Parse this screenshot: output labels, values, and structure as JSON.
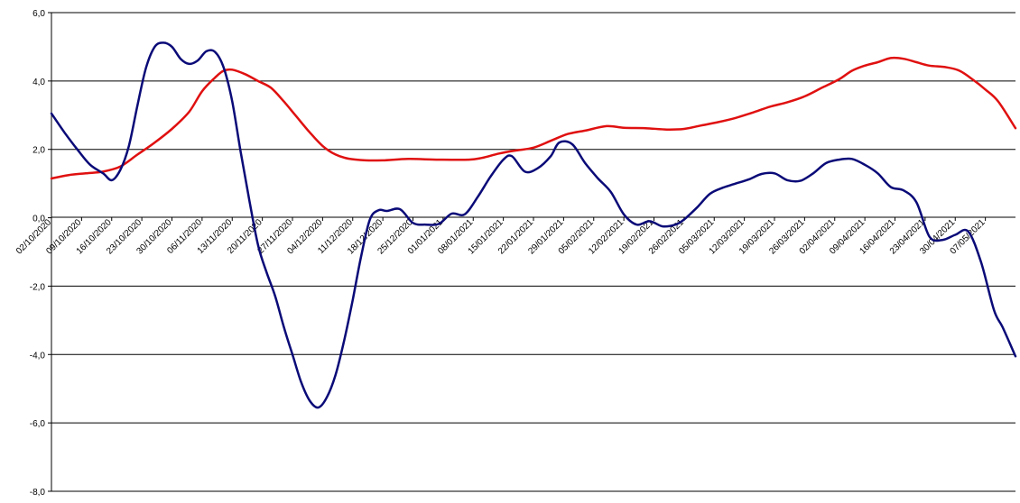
{
  "chart_data": {
    "type": "line",
    "title": "",
    "xlabel": "",
    "ylabel": "",
    "ylim": [
      -8,
      6
    ],
    "ytick_step": 2,
    "ytick_labels": [
      "-8,0",
      "-6,0",
      "-4,0",
      "-2,0",
      "0,0",
      "2,0",
      "4,0",
      "6,0"
    ],
    "grid": "horizontal",
    "legend": "none",
    "xlim": [
      "2020-10-02",
      "2021-05-14"
    ],
    "x_tick_labels": [
      "02/10/2020",
      "09/10/2020",
      "16/10/2020",
      "23/10/2020",
      "30/10/2020",
      "06/11/2020",
      "13/11/2020",
      "20/11/2020",
      "27/11/2020",
      "04/12/2020",
      "11/12/2020",
      "18/12/2020",
      "25/12/2020",
      "01/01/2021",
      "08/01/2021",
      "15/01/2021",
      "22/01/2021",
      "29/01/2021",
      "05/02/2021",
      "12/02/2021",
      "19/02/2021",
      "26/02/2021",
      "05/03/2021",
      "12/03/2021",
      "19/03/2021",
      "26/03/2021",
      "02/04/2021",
      "09/04/2021",
      "16/04/2021",
      "23/04/2021",
      "30/04/2021",
      "07/05/2021"
    ],
    "series": [
      {
        "color": "#e01010",
        "points": [
          [
            "2020-10-02",
            1.15
          ],
          [
            "2020-10-06",
            1.25
          ],
          [
            "2020-10-10",
            1.3
          ],
          [
            "2020-10-14",
            1.35
          ],
          [
            "2020-10-18",
            1.5
          ],
          [
            "2020-10-22",
            1.85
          ],
          [
            "2020-10-26",
            2.2
          ],
          [
            "2020-10-30",
            2.6
          ],
          [
            "2020-11-03",
            3.1
          ],
          [
            "2020-11-06",
            3.7
          ],
          [
            "2020-11-09",
            4.1
          ],
          [
            "2020-11-11",
            4.3
          ],
          [
            "2020-11-13",
            4.33
          ],
          [
            "2020-11-16",
            4.2
          ],
          [
            "2020-11-19",
            4.0
          ],
          [
            "2020-11-22",
            3.8
          ],
          [
            "2020-11-25",
            3.4
          ],
          [
            "2020-11-28",
            2.95
          ],
          [
            "2020-12-01",
            2.5
          ],
          [
            "2020-12-04",
            2.1
          ],
          [
            "2020-12-07",
            1.85
          ],
          [
            "2020-12-10",
            1.73
          ],
          [
            "2020-12-14",
            1.68
          ],
          [
            "2020-12-18",
            1.68
          ],
          [
            "2020-12-24",
            1.72
          ],
          [
            "2020-12-31",
            1.7
          ],
          [
            "2021-01-07",
            1.7
          ],
          [
            "2021-01-10",
            1.75
          ],
          [
            "2021-01-14",
            1.88
          ],
          [
            "2021-01-18",
            1.97
          ],
          [
            "2021-01-22",
            2.05
          ],
          [
            "2021-01-26",
            2.25
          ],
          [
            "2021-01-30",
            2.45
          ],
          [
            "2021-02-03",
            2.55
          ],
          [
            "2021-02-08",
            2.68
          ],
          [
            "2021-02-12",
            2.63
          ],
          [
            "2021-02-17",
            2.62
          ],
          [
            "2021-02-22",
            2.58
          ],
          [
            "2021-02-26",
            2.6
          ],
          [
            "2021-03-02",
            2.7
          ],
          [
            "2021-03-06",
            2.8
          ],
          [
            "2021-03-10",
            2.92
          ],
          [
            "2021-03-14",
            3.08
          ],
          [
            "2021-03-18",
            3.25
          ],
          [
            "2021-03-22",
            3.38
          ],
          [
            "2021-03-26",
            3.55
          ],
          [
            "2021-03-30",
            3.8
          ],
          [
            "2021-04-03",
            4.05
          ],
          [
            "2021-04-06",
            4.3
          ],
          [
            "2021-04-09",
            4.45
          ],
          [
            "2021-04-12",
            4.55
          ],
          [
            "2021-04-15",
            4.67
          ],
          [
            "2021-04-18",
            4.65
          ],
          [
            "2021-04-21",
            4.55
          ],
          [
            "2021-04-24",
            4.45
          ],
          [
            "2021-04-28",
            4.4
          ],
          [
            "2021-05-01",
            4.3
          ],
          [
            "2021-05-04",
            4.05
          ],
          [
            "2021-05-07",
            3.75
          ],
          [
            "2021-05-10",
            3.4
          ],
          [
            "2021-05-14",
            2.62
          ]
        ]
      },
      {
        "color": "#0a0a78",
        "points": [
          [
            "2020-10-02",
            3.05
          ],
          [
            "2020-10-05",
            2.5
          ],
          [
            "2020-10-08",
            2.0
          ],
          [
            "2020-10-11",
            1.55
          ],
          [
            "2020-10-14",
            1.3
          ],
          [
            "2020-10-16",
            1.1
          ],
          [
            "2020-10-18",
            1.4
          ],
          [
            "2020-10-20",
            2.1
          ],
          [
            "2020-10-22",
            3.3
          ],
          [
            "2020-10-24",
            4.4
          ],
          [
            "2020-10-26",
            5.0
          ],
          [
            "2020-10-28",
            5.12
          ],
          [
            "2020-10-30",
            5.0
          ],
          [
            "2020-11-01",
            4.65
          ],
          [
            "2020-11-03",
            4.5
          ],
          [
            "2020-11-05",
            4.6
          ],
          [
            "2020-11-07",
            4.87
          ],
          [
            "2020-11-09",
            4.85
          ],
          [
            "2020-11-11",
            4.4
          ],
          [
            "2020-11-13",
            3.4
          ],
          [
            "2020-11-15",
            1.9
          ],
          [
            "2020-11-17",
            0.5
          ],
          [
            "2020-11-19",
            -0.8
          ],
          [
            "2020-11-21",
            -1.6
          ],
          [
            "2020-11-23",
            -2.3
          ],
          [
            "2020-11-25",
            -3.2
          ],
          [
            "2020-11-27",
            -4.0
          ],
          [
            "2020-11-29",
            -4.8
          ],
          [
            "2020-12-01",
            -5.35
          ],
          [
            "2020-12-03",
            -5.55
          ],
          [
            "2020-12-05",
            -5.25
          ],
          [
            "2020-12-07",
            -4.6
          ],
          [
            "2020-12-09",
            -3.6
          ],
          [
            "2020-12-11",
            -2.4
          ],
          [
            "2020-12-13",
            -1.1
          ],
          [
            "2020-12-15",
            -0.05
          ],
          [
            "2020-12-17",
            0.22
          ],
          [
            "2020-12-19",
            0.2
          ],
          [
            "2020-12-22",
            0.25
          ],
          [
            "2020-12-25",
            -0.15
          ],
          [
            "2020-12-28",
            -0.2
          ],
          [
            "2020-12-31",
            -0.18
          ],
          [
            "2021-01-03",
            0.12
          ],
          [
            "2021-01-06",
            0.1
          ],
          [
            "2021-01-09",
            0.6
          ],
          [
            "2021-01-12",
            1.2
          ],
          [
            "2021-01-15",
            1.7
          ],
          [
            "2021-01-17",
            1.8
          ],
          [
            "2021-01-20",
            1.35
          ],
          [
            "2021-01-23",
            1.45
          ],
          [
            "2021-01-26",
            1.8
          ],
          [
            "2021-01-28",
            2.2
          ],
          [
            "2021-01-31",
            2.15
          ],
          [
            "2021-02-03",
            1.6
          ],
          [
            "2021-02-06",
            1.15
          ],
          [
            "2021-02-09",
            0.75
          ],
          [
            "2021-02-12",
            0.1
          ],
          [
            "2021-02-15",
            -0.2
          ],
          [
            "2021-02-18",
            -0.1
          ],
          [
            "2021-02-21",
            -0.25
          ],
          [
            "2021-02-24",
            -0.2
          ],
          [
            "2021-02-26",
            -0.05
          ],
          [
            "2021-03-01",
            0.3
          ],
          [
            "2021-03-04",
            0.7
          ],
          [
            "2021-03-07",
            0.88
          ],
          [
            "2021-03-10",
            1.0
          ],
          [
            "2021-03-13",
            1.12
          ],
          [
            "2021-03-16",
            1.28
          ],
          [
            "2021-03-19",
            1.3
          ],
          [
            "2021-03-22",
            1.1
          ],
          [
            "2021-03-25",
            1.08
          ],
          [
            "2021-03-28",
            1.3
          ],
          [
            "2021-03-31",
            1.6
          ],
          [
            "2021-04-03",
            1.7
          ],
          [
            "2021-04-06",
            1.72
          ],
          [
            "2021-04-09",
            1.55
          ],
          [
            "2021-04-12",
            1.3
          ],
          [
            "2021-04-15",
            0.9
          ],
          [
            "2021-04-18",
            0.8
          ],
          [
            "2021-04-21",
            0.45
          ],
          [
            "2021-04-24",
            -0.55
          ],
          [
            "2021-04-27",
            -0.65
          ],
          [
            "2021-04-30",
            -0.5
          ],
          [
            "2021-05-03",
            -0.4
          ],
          [
            "2021-05-06",
            -1.3
          ],
          [
            "2021-05-09",
            -2.7
          ],
          [
            "2021-05-11",
            -3.2
          ],
          [
            "2021-05-14",
            -4.05
          ]
        ]
      }
    ]
  }
}
